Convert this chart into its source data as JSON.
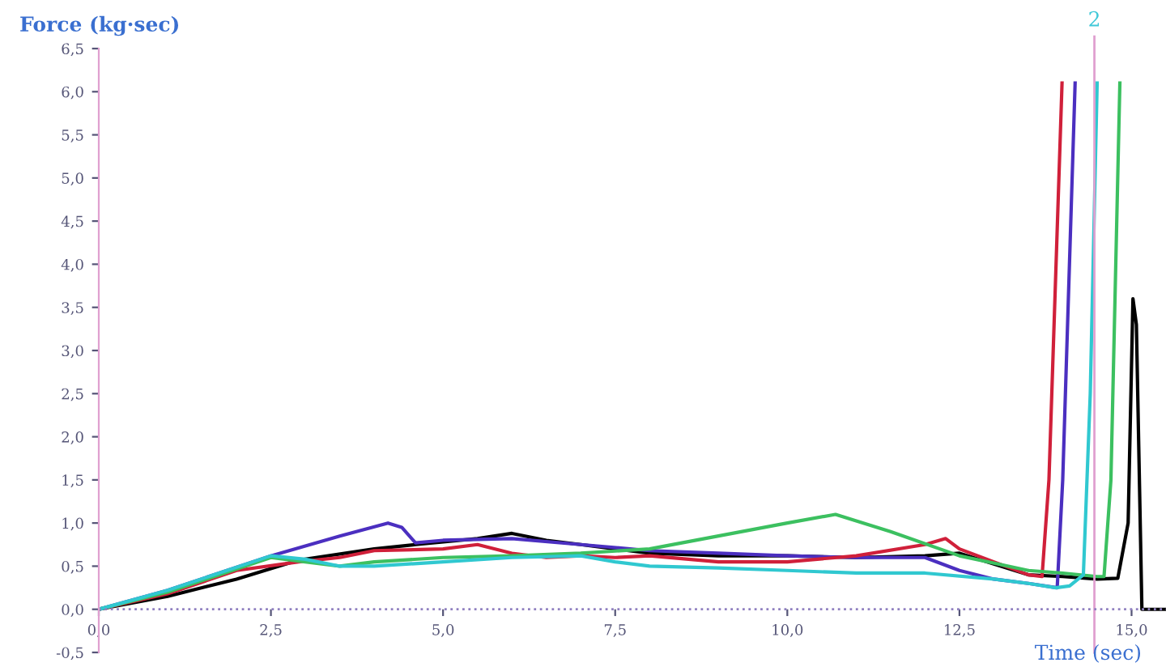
{
  "chart_data": {
    "type": "line",
    "xlabel": "Time (sec)",
    "ylabel": "Force (kg·sec)",
    "xlim": [
      0,
      15.5
    ],
    "ylim": [
      -0.5,
      6.5
    ],
    "xticks": [
      {
        "value": 0,
        "label": "0,0"
      },
      {
        "value": 2.5,
        "label": "2,5"
      },
      {
        "value": 5,
        "label": "5,0"
      },
      {
        "value": 7.5,
        "label": "7,5"
      },
      {
        "value": 10,
        "label": "10,0"
      },
      {
        "value": 12.5,
        "label": "12,5"
      },
      {
        "value": 15,
        "label": "15,0"
      }
    ],
    "yticks": [
      {
        "value": -0.5,
        "label": "-0,5"
      },
      {
        "value": 0,
        "label": "0,0"
      },
      {
        "value": 0.5,
        "label": "0,5"
      },
      {
        "value": 1,
        "label": "1,0"
      },
      {
        "value": 1.5,
        "label": "1,5"
      },
      {
        "value": 2,
        "label": "2,0"
      },
      {
        "value": 2.5,
        "label": "2,5"
      },
      {
        "value": 3,
        "label": "3,0"
      },
      {
        "value": 3.5,
        "label": "3,5"
      },
      {
        "value": 4,
        "label": "4,0"
      },
      {
        "value": 4.5,
        "label": "4,5"
      },
      {
        "value": 5,
        "label": "5,0"
      },
      {
        "value": 5.5,
        "label": "5,5"
      },
      {
        "value": 6,
        "label": "6,0"
      },
      {
        "value": 6.5,
        "label": "6,5"
      }
    ],
    "grid": false,
    "legend": false,
    "marker": "none",
    "line_style": "solid",
    "annotations": [
      "2"
    ],
    "ref_lines": [
      {
        "axis": "x",
        "value": 14.46,
        "color": "#e0a0d0"
      },
      {
        "axis": "y",
        "value": 0,
        "color": "#9080c0",
        "line_style": "dotted"
      }
    ],
    "series": [
      {
        "color": "#000000",
        "x": [
          0,
          1,
          2,
          2.9,
          4,
          4.6,
          5.5,
          6,
          6.5,
          7,
          7.5,
          8,
          9,
          10,
          11,
          12,
          12.5,
          13.5,
          14,
          14.5,
          14.8,
          14.95,
          15.02,
          15.07,
          15.15,
          15.5
        ],
        "values": [
          0,
          0.15,
          0.35,
          0.57,
          0.7,
          0.75,
          0.82,
          0.88,
          0.8,
          0.75,
          0.7,
          0.65,
          0.62,
          0.62,
          0.6,
          0.62,
          0.65,
          0.4,
          0.38,
          0.35,
          0.36,
          1.0,
          3.6,
          3.3,
          0,
          0
        ]
      },
      {
        "color": "#4b2fc0",
        "x": [
          0,
          1,
          2.5,
          3.5,
          4.2,
          4.4,
          4.6,
          5,
          6,
          7,
          8,
          9,
          10,
          11,
          12,
          12.5,
          13,
          13.5,
          13.92,
          14.0,
          14.18
        ],
        "values": [
          0,
          0.22,
          0.62,
          0.85,
          1.0,
          0.95,
          0.77,
          0.8,
          0.82,
          0.75,
          0.68,
          0.65,
          0.62,
          0.6,
          0.6,
          0.45,
          0.35,
          0.3,
          0.25,
          1.5,
          6.1
        ]
      },
      {
        "color": "#d0203a",
        "x": [
          0,
          1,
          2,
          2.9,
          3.5,
          4,
          5,
          5.5,
          6,
          6.5,
          7,
          7.5,
          8,
          9,
          10,
          11,
          12,
          12.3,
          12.5,
          13,
          13.5,
          13.7,
          13.8,
          13.99
        ],
        "values": [
          0,
          0.18,
          0.45,
          0.55,
          0.6,
          0.68,
          0.7,
          0.75,
          0.65,
          0.6,
          0.62,
          0.6,
          0.62,
          0.55,
          0.55,
          0.62,
          0.75,
          0.82,
          0.7,
          0.55,
          0.4,
          0.38,
          1.5,
          6.1
        ]
      },
      {
        "color": "#3cc060",
        "x": [
          0,
          1,
          2.5,
          3,
          3.5,
          4,
          5,
          6,
          7,
          8,
          9,
          10,
          10.7,
          11.5,
          12.5,
          13.5,
          14,
          14.5,
          14.6,
          14.7,
          14.83
        ],
        "values": [
          0,
          0.2,
          0.6,
          0.55,
          0.5,
          0.55,
          0.6,
          0.62,
          0.65,
          0.7,
          0.85,
          1.0,
          1.1,
          0.9,
          0.62,
          0.45,
          0.42,
          0.38,
          0.38,
          1.5,
          6.1
        ]
      },
      {
        "color": "#30c8d0",
        "x": [
          0,
          1,
          2.5,
          3,
          3.5,
          4,
          5,
          6,
          7,
          7.5,
          8,
          9,
          10,
          11,
          12,
          13,
          13.5,
          13.9,
          14.1,
          14.3,
          14.4,
          14.5
        ],
        "values": [
          0,
          0.22,
          0.62,
          0.58,
          0.5,
          0.5,
          0.55,
          0.6,
          0.62,
          0.55,
          0.5,
          0.48,
          0.45,
          0.42,
          0.42,
          0.35,
          0.3,
          0.25,
          0.27,
          0.4,
          2.5,
          6.1
        ]
      }
    ]
  }
}
